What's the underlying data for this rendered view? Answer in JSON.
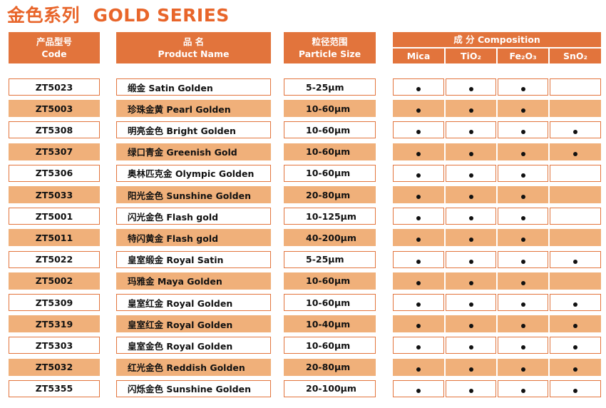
{
  "header": {
    "title_cn": "金色系列",
    "title_en": "GOLD SERIES"
  },
  "table": {
    "columns": [
      {
        "cn": "产品型号",
        "en": "Code"
      },
      {
        "cn": "品 名",
        "en": "Product Name"
      },
      {
        "cn": "粒径范围",
        "en": "Particle Size"
      }
    ],
    "composition": {
      "title": "成 分 Composition",
      "items": [
        "Mica",
        "TiO₂",
        "Fe₂O₃",
        "SnO₂"
      ]
    },
    "rows": [
      {
        "code": "ZT5023",
        "name": "缎金 Satin Golden",
        "size": "5-25μm",
        "composition": [
          true,
          true,
          true,
          false
        ]
      },
      {
        "code": "ZT5003",
        "name": "珍珠金黄 Pearl Golden",
        "size": "10-60μm",
        "composition": [
          true,
          true,
          true,
          false
        ]
      },
      {
        "code": "ZT5308",
        "name": "明亮金色 Bright Golden",
        "size": "10-60μm",
        "composition": [
          true,
          true,
          true,
          true
        ]
      },
      {
        "code": "ZT5307",
        "name": "绿口青金 Greenish Gold",
        "size": "10-60μm",
        "composition": [
          true,
          true,
          true,
          true
        ]
      },
      {
        "code": "ZT5306",
        "name": "奥林匹克金 Olympic Golden",
        "size": "10-60μm",
        "composition": [
          true,
          true,
          true,
          false
        ]
      },
      {
        "code": "ZT5033",
        "name": "阳光金色 Sunshine Golden",
        "size": "20-80μm",
        "composition": [
          true,
          true,
          true,
          false
        ]
      },
      {
        "code": "ZT5001",
        "name": "闪光金色 Flash gold",
        "size": "10-125μm",
        "composition": [
          true,
          true,
          true,
          false
        ]
      },
      {
        "code": "ZT5011",
        "name": "特闪黄金 Flash gold",
        "size": "40-200μm",
        "composition": [
          true,
          true,
          true,
          false
        ]
      },
      {
        "code": "ZT5022",
        "name": "皇室缎金 Royal Satin",
        "size": "5-25μm",
        "composition": [
          true,
          true,
          true,
          true
        ]
      },
      {
        "code": "ZT5002",
        "name": "玛雅金 Maya Golden",
        "size": "10-60μm",
        "composition": [
          true,
          true,
          true,
          false
        ]
      },
      {
        "code": "ZT5309",
        "name": "皇室红金 Royal Golden",
        "size": "10-60μm",
        "composition": [
          true,
          true,
          true,
          true
        ]
      },
      {
        "code": "ZT5319",
        "name": "皇室红金 Royal Golden",
        "size": "10-40μm",
        "composition": [
          true,
          true,
          true,
          true
        ]
      },
      {
        "code": "ZT5303",
        "name": "皇室金色 Royal Golden",
        "size": "10-60μm",
        "composition": [
          true,
          true,
          true,
          true
        ]
      },
      {
        "code": "ZT5032",
        "name": "红光金色 Reddish Golden",
        "size": "20-80μm",
        "composition": [
          true,
          true,
          true,
          true
        ]
      },
      {
        "code": "ZT5355",
        "name": "闪烁金色 Sunshine Golden",
        "size": "20-100μm",
        "composition": [
          true,
          true,
          true,
          true
        ]
      }
    ]
  }
}
